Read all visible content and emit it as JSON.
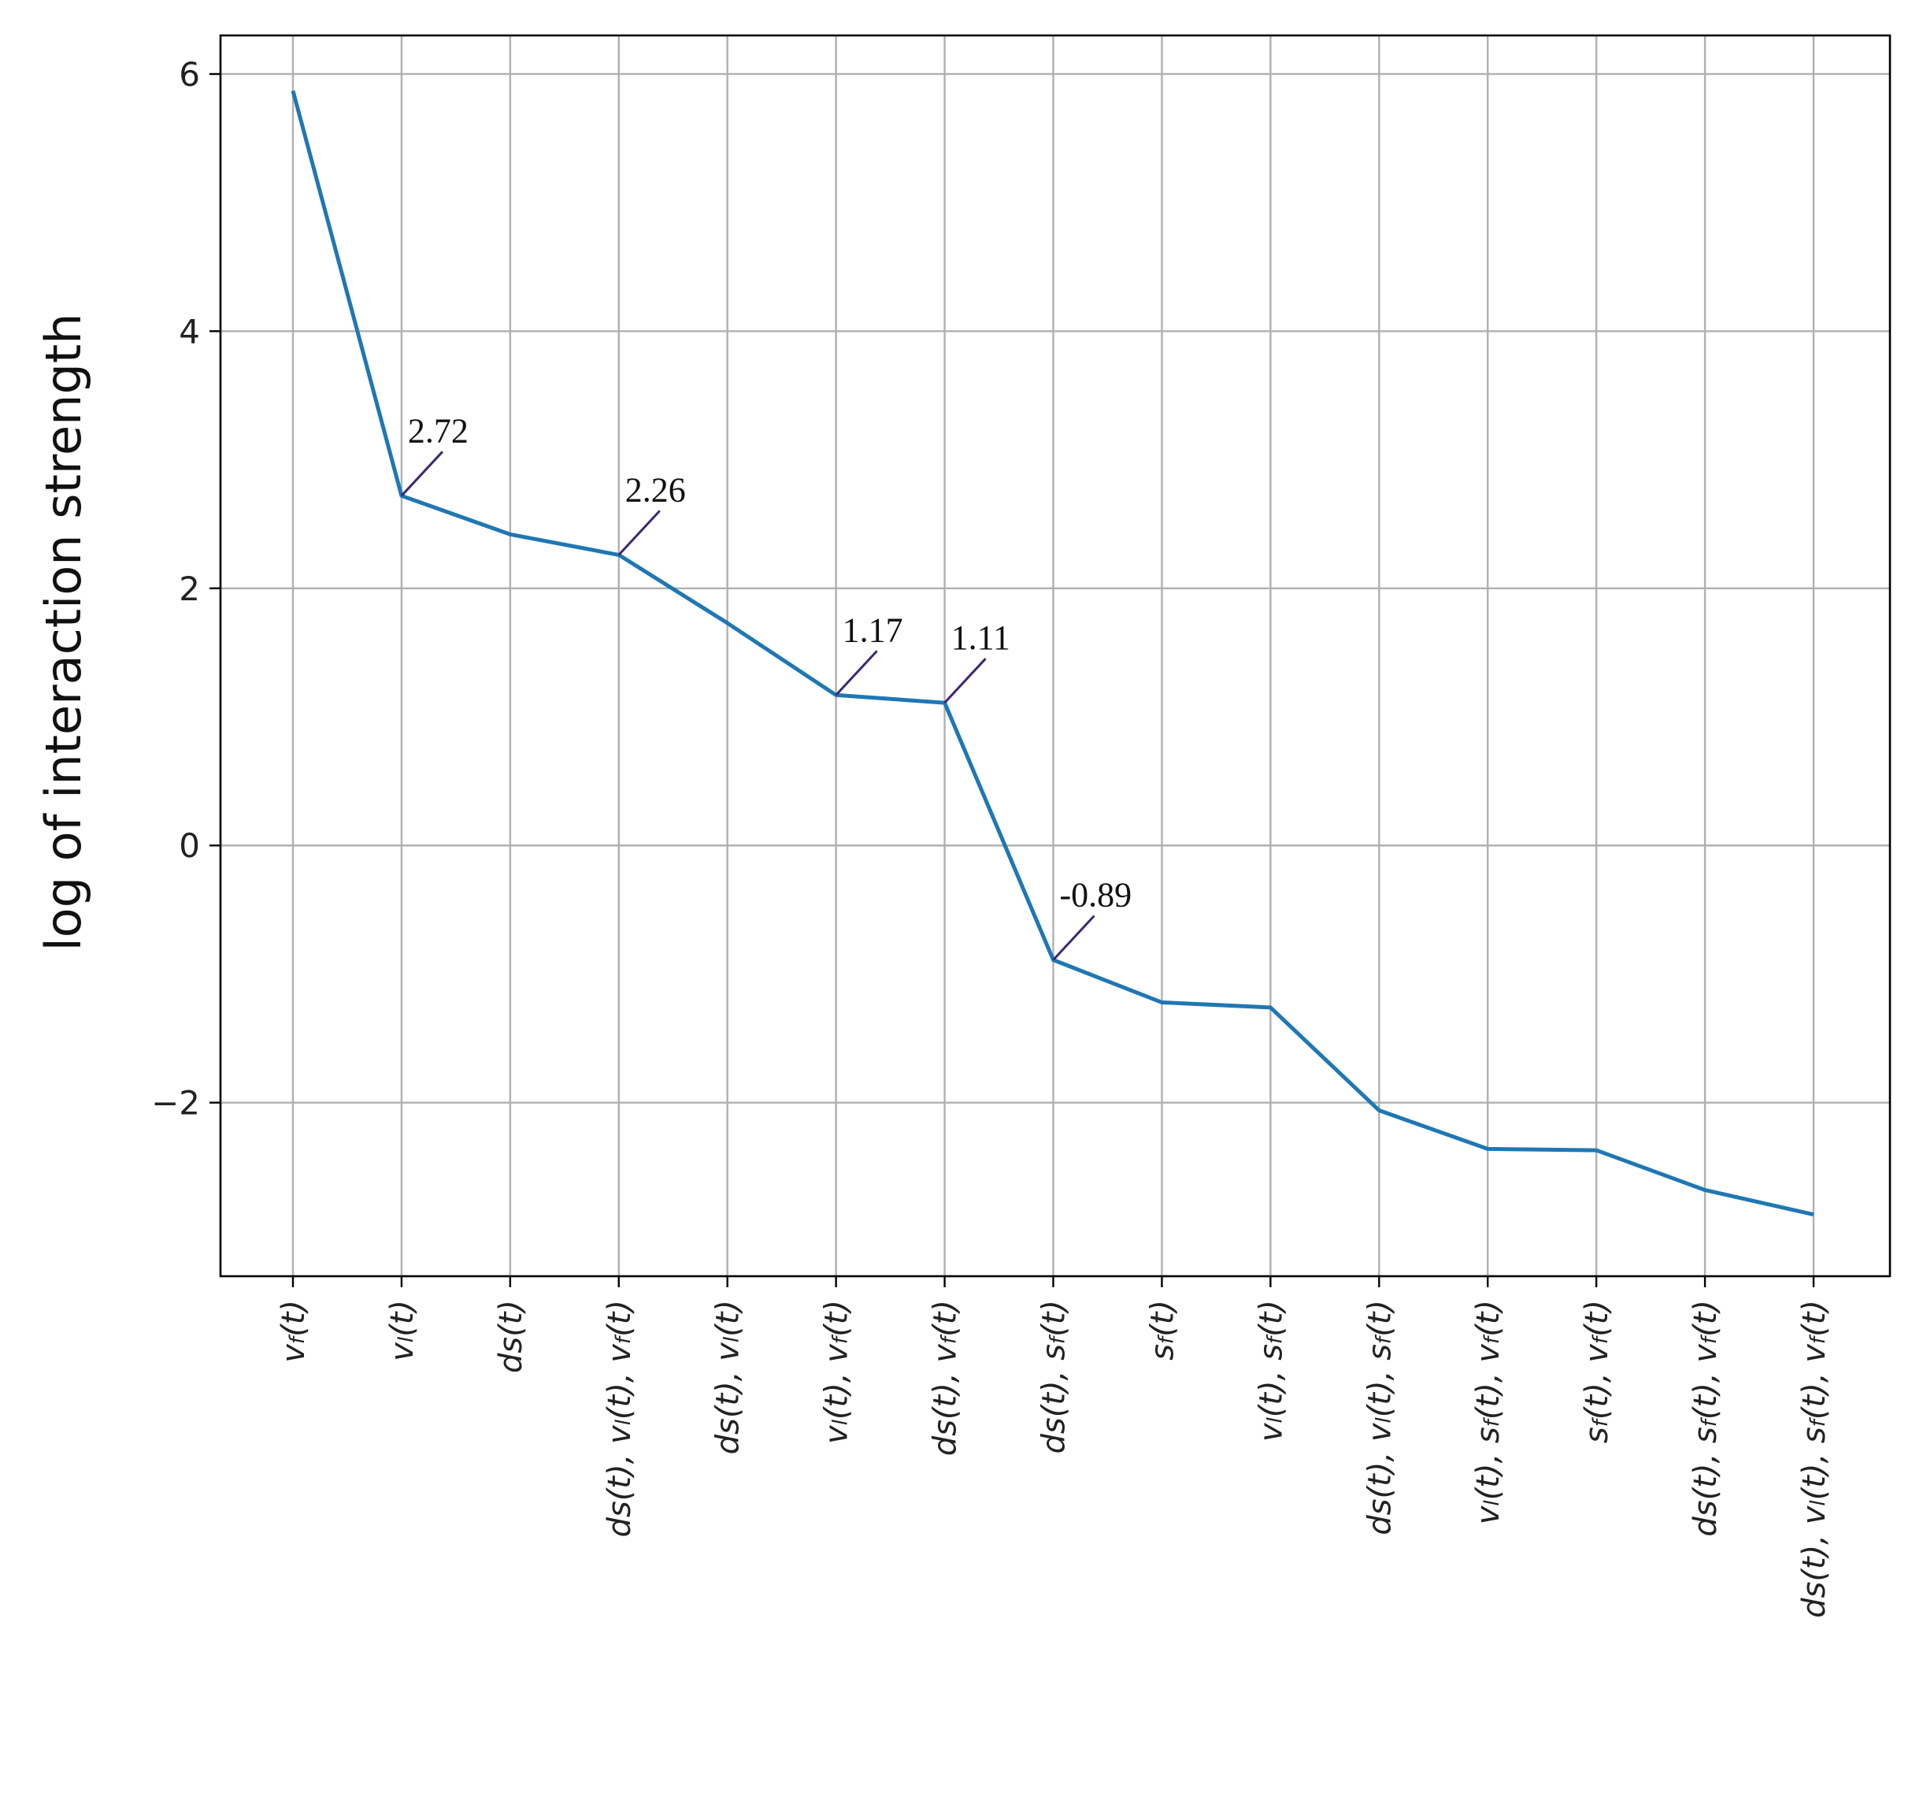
{
  "chart_data": {
    "type": "line",
    "ylabel": "log of interaction strength",
    "xlabel": "",
    "ylim": [
      -3.35,
      6.3
    ],
    "yticks": [
      6,
      4,
      2,
      0,
      -2
    ],
    "ytick_labels": [
      "6",
      "4",
      "2",
      "0",
      "−2"
    ],
    "grid": true,
    "line_color": "#1f77b4",
    "annotation_color": "#3b2675",
    "categories": [
      [
        {
          "t": "v"
        },
        {
          "t": "f",
          "s": "sub"
        },
        {
          "t": "(t)"
        }
      ],
      [
        {
          "t": "v"
        },
        {
          "t": "l",
          "s": "sub"
        },
        {
          "t": "(t)"
        }
      ],
      [
        {
          "t": "ds(t)"
        }
      ],
      [
        {
          "t": "ds(t), v"
        },
        {
          "t": "l",
          "s": "sub"
        },
        {
          "t": "(t), v"
        },
        {
          "t": "f",
          "s": "sub"
        },
        {
          "t": "(t)"
        }
      ],
      [
        {
          "t": "ds(t), v"
        },
        {
          "t": "l",
          "s": "sub"
        },
        {
          "t": "(t)"
        }
      ],
      [
        {
          "t": "v"
        },
        {
          "t": "l",
          "s": "sub"
        },
        {
          "t": "(t), v"
        },
        {
          "t": "f",
          "s": "sub"
        },
        {
          "t": "(t)"
        }
      ],
      [
        {
          "t": "ds(t), v"
        },
        {
          "t": "f",
          "s": "sub"
        },
        {
          "t": "(t)"
        }
      ],
      [
        {
          "t": "ds(t), s"
        },
        {
          "t": "f",
          "s": "sub"
        },
        {
          "t": "(t)"
        }
      ],
      [
        {
          "t": "s"
        },
        {
          "t": "f",
          "s": "sub"
        },
        {
          "t": "(t)"
        }
      ],
      [
        {
          "t": "v"
        },
        {
          "t": "l",
          "s": "sub"
        },
        {
          "t": "(t), s"
        },
        {
          "t": "f",
          "s": "sub"
        },
        {
          "t": "(t)"
        }
      ],
      [
        {
          "t": "ds(t), v"
        },
        {
          "t": "l",
          "s": "sub"
        },
        {
          "t": "(t), s"
        },
        {
          "t": "f",
          "s": "sub"
        },
        {
          "t": "(t)"
        }
      ],
      [
        {
          "t": "v"
        },
        {
          "t": "l",
          "s": "sub"
        },
        {
          "t": "(t), s"
        },
        {
          "t": "f",
          "s": "sub"
        },
        {
          "t": "(t), v"
        },
        {
          "t": "f",
          "s": "sub"
        },
        {
          "t": "(t)"
        }
      ],
      [
        {
          "t": "s"
        },
        {
          "t": "f",
          "s": "sub"
        },
        {
          "t": "(t), v"
        },
        {
          "t": "f",
          "s": "sub"
        },
        {
          "t": "(t)"
        }
      ],
      [
        {
          "t": "ds(t), s"
        },
        {
          "t": "f",
          "s": "sub"
        },
        {
          "t": "(t), v"
        },
        {
          "t": "f",
          "s": "sub"
        },
        {
          "t": "(t)"
        }
      ],
      [
        {
          "t": "ds(t), v"
        },
        {
          "t": "l",
          "s": "sub"
        },
        {
          "t": "(t), s"
        },
        {
          "t": "f",
          "s": "sub"
        },
        {
          "t": "(t), v"
        },
        {
          "t": "f",
          "s": "sub"
        },
        {
          "t": "(t)"
        }
      ]
    ],
    "values": [
      5.87,
      2.72,
      2.42,
      2.26,
      1.73,
      1.17,
      1.11,
      -0.89,
      -1.22,
      -1.26,
      -2.06,
      -2.36,
      -2.37,
      -2.68,
      -2.87
    ],
    "annotations": [
      {
        "index": 1,
        "text": "2.72"
      },
      {
        "index": 3,
        "text": "2.26"
      },
      {
        "index": 5,
        "text": "1.17"
      },
      {
        "index": 6,
        "text": "1.11"
      },
      {
        "index": 7,
        "text": "-0.89"
      }
    ]
  }
}
